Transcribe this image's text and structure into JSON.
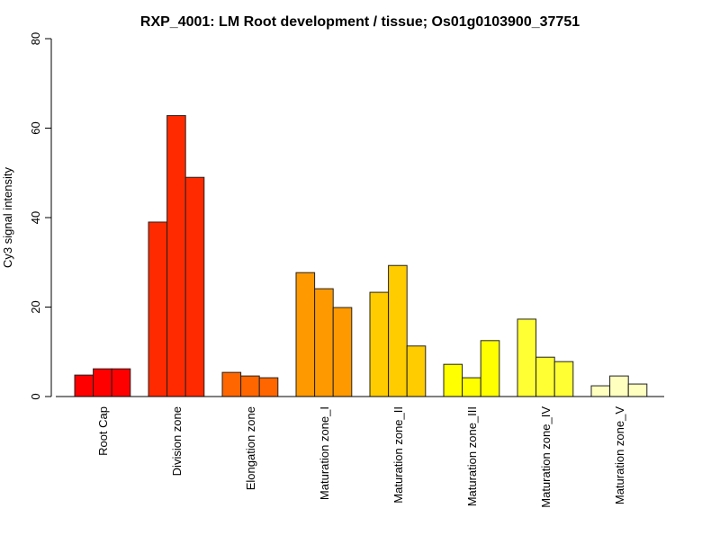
{
  "chart_data": {
    "type": "bar",
    "title": "RXP_4001: LM Root development / tissue; Os01g0103900_37751",
    "xlabel": "",
    "ylabel": "Cy3 signal intensity",
    "ylim": [
      0,
      80
    ],
    "yticks": [
      "0",
      "20",
      "40",
      "60",
      "80"
    ],
    "grid": false,
    "categories": [
      "Root Cap",
      "Division zone",
      "Elongation zone",
      "Maturation zone_I",
      "Maturation zone_II",
      "Maturation zone_III",
      "Maturation zone_IV",
      "Maturation zone_V"
    ],
    "colors": [
      "#FF0000",
      "#FF2A00",
      "#FF6600",
      "#FF9900",
      "#FFCC00",
      "#FFFF00",
      "#FFFF33",
      "#FFFFC0"
    ],
    "values": [
      [
        4.8,
        6.2,
        6.2
      ],
      [
        39.0,
        62.8,
        49.0
      ],
      [
        5.4,
        4.6,
        4.2
      ],
      [
        27.7,
        24.1,
        19.9
      ],
      [
        23.3,
        29.3,
        11.3
      ],
      [
        7.2,
        4.2,
        12.5
      ],
      [
        17.3,
        8.8,
        7.8
      ],
      [
        2.4,
        4.6,
        2.8
      ]
    ]
  }
}
